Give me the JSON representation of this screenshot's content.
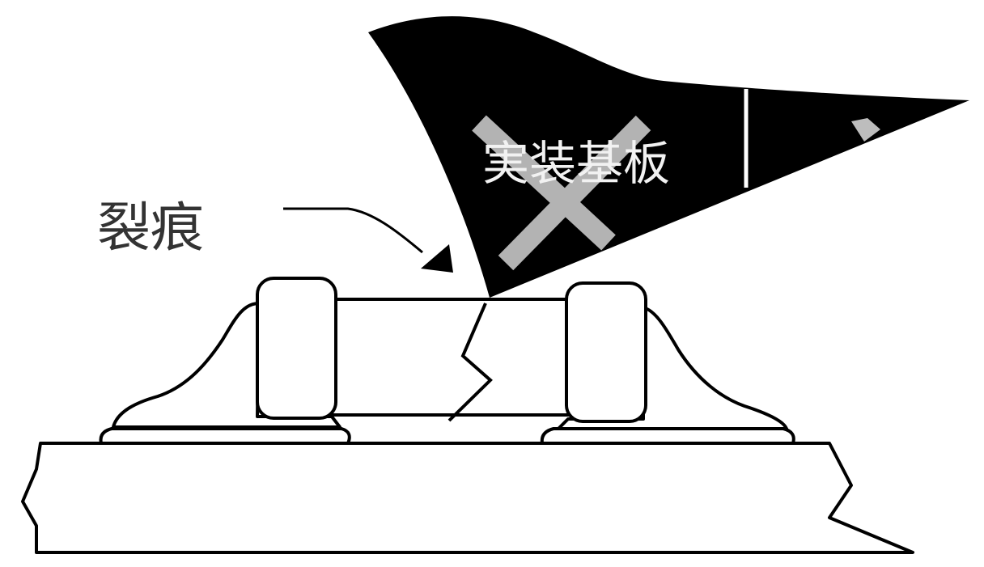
{
  "labels": {
    "crack": "裂痕",
    "substrate": "実装基板"
  },
  "colors": {
    "line": "#000000",
    "fill": "#ffffff",
    "x_mark": "#b3b3b3",
    "flag_stripe": "#ffffff"
  },
  "icons": {
    "no_symbol": "x-mark-icon",
    "pointer": "arrow-icon"
  }
}
